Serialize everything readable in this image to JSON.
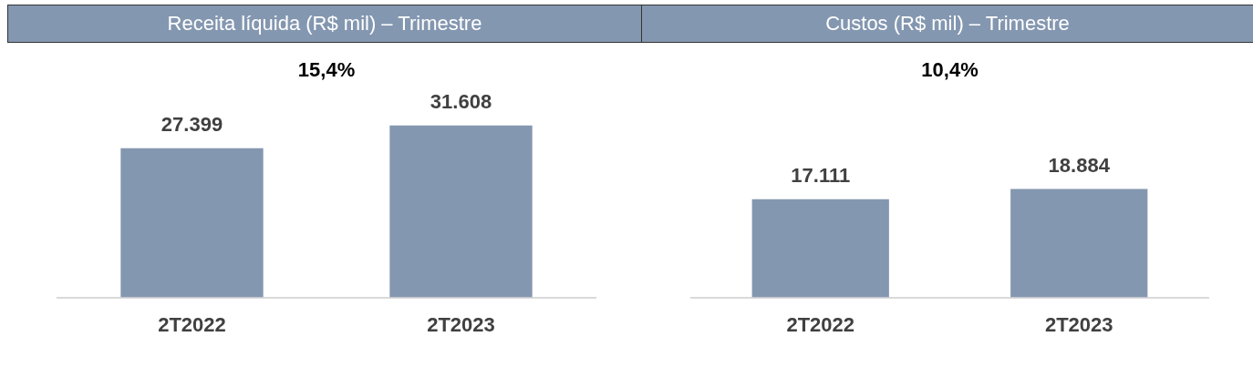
{
  "chart_data": [
    {
      "type": "bar",
      "title": "Receita líquida (R$ mil) – Trimestre",
      "categories": [
        "2T2022",
        "2T2023"
      ],
      "values": [
        27399,
        31608
      ],
      "value_labels": [
        "27.399",
        "31.608"
      ],
      "color": "#8497b0",
      "annotations": [
        "15,4%"
      ],
      "tick_labels": "x",
      "grid": false,
      "legend": false
    },
    {
      "type": "bar",
      "title": "Custos (R$ mil) – Trimestre",
      "categories": [
        "2T2022",
        "2T2023"
      ],
      "values": [
        17111,
        18884
      ],
      "value_labels": [
        "17.111",
        "18.884"
      ],
      "color": "#8497b0",
      "annotations": [
        "10,4%"
      ],
      "tick_labels": "x",
      "grid": false,
      "legend": false
    }
  ]
}
